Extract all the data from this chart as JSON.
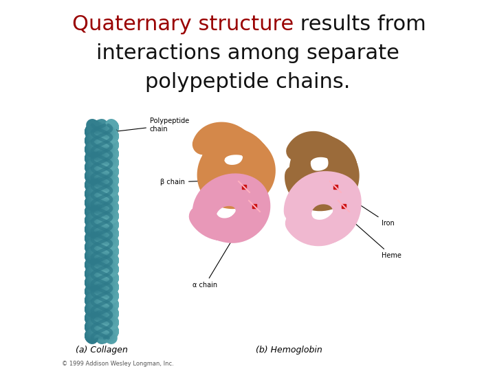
{
  "title_red": "Quaternary structure",
  "title_black": " results from",
  "title_line2": "interactions among separate",
  "title_line3": "polypeptide chains.",
  "title_fontsize": 22,
  "title_color_red": "#990000",
  "title_color_black": "#111111",
  "bg_color": "#FFFFFF",
  "collagen_color_light": "#5BA8B0",
  "collagen_color_dark": "#2E7A8A",
  "collagen_color_mid": "#4090A0",
  "orange_color": "#D4884A",
  "brown_color": "#9B6B3A",
  "pink_color": "#E898B8",
  "pink_light": "#F0B8D0",
  "red_heme": "#CC1111",
  "label_fontsize": 7,
  "caption_fontsize": 9,
  "copyright_fontsize": 6,
  "caption_collagen": "(a) Collagen",
  "caption_hemoglobin": "(b) Hemoglobin",
  "copyright": "© 1999 Addison Wesley Longman, Inc."
}
